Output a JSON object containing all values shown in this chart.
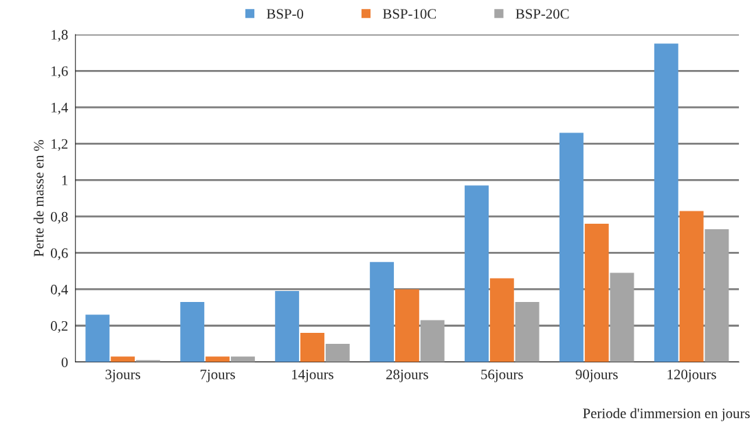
{
  "chart_data": {
    "type": "bar",
    "xlabel": "Periode d'immersion en jours",
    "ylabel": "Perte de masse en %",
    "categories": [
      "3jours",
      "7jours",
      "14jours",
      "28jours",
      "56jours",
      "90jours",
      "120jours"
    ],
    "series": [
      {
        "name": "BSP-0",
        "color": "#5b9bd5",
        "values": [
          0.26,
          0.33,
          0.39,
          0.55,
          0.97,
          1.26,
          1.75
        ]
      },
      {
        "name": "BSP-10C",
        "color": "#ed7d31",
        "values": [
          0.03,
          0.03,
          0.16,
          0.4,
          0.46,
          0.76,
          0.83
        ]
      },
      {
        "name": "BSP-20C",
        "color": "#a5a5a5",
        "values": [
          0.01,
          0.03,
          0.1,
          0.23,
          0.33,
          0.49,
          0.73
        ]
      }
    ],
    "ylim": [
      0,
      1.8
    ],
    "yticks": [
      0,
      {
        "value": 0.2,
        "label": "0,2"
      },
      {
        "value": 0.4,
        "label": "0,4"
      },
      {
        "value": 0.6,
        "label": "0,6"
      },
      {
        "value": 0.8,
        "label": "0,8"
      },
      1,
      {
        "value": 1.2,
        "label": "1,2"
      },
      {
        "value": 1.4,
        "label": "1,4"
      },
      {
        "value": 1.6,
        "label": "1,6"
      },
      {
        "value": 1.8,
        "label": "1,8"
      }
    ],
    "grid": "y",
    "legend": "top"
  }
}
